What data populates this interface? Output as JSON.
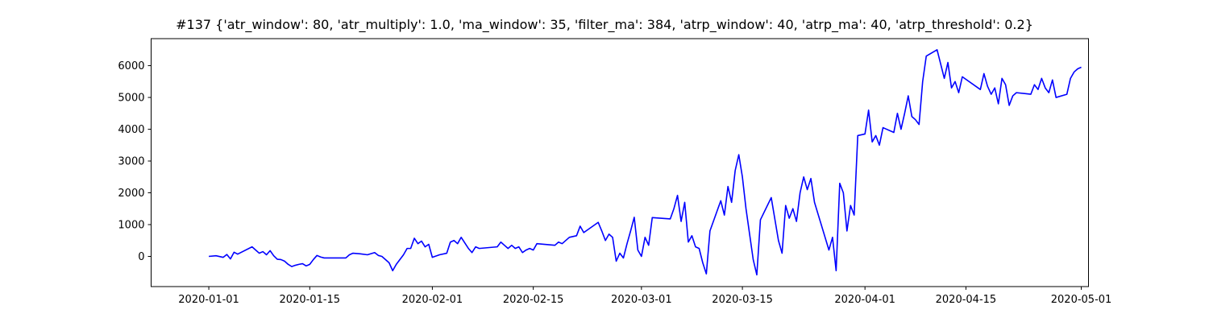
{
  "chart_data": {
    "type": "line",
    "title": "#137 {'atr_window': 80, 'atr_multiply': 1.0, 'ma_window': 35, 'filter_ma': 384, 'atrp_window': 40, 'atrp_ma': 40, 'atrp_threshold': 0.2}",
    "xlabel": "",
    "ylabel": "",
    "x_axis": {
      "type": "date",
      "range": [
        "2019-12-24",
        "2020-05-02"
      ],
      "ticks": [
        "2020-01-01",
        "2020-01-15",
        "2020-02-01",
        "2020-02-15",
        "2020-03-01",
        "2020-03-15",
        "2020-04-01",
        "2020-04-15",
        "2020-05-01"
      ]
    },
    "y_axis": {
      "range": [
        -950,
        6850
      ],
      "ticks": [
        0,
        1000,
        2000,
        3000,
        4000,
        5000,
        6000
      ]
    },
    "grid": false,
    "legend": "none",
    "series": [
      {
        "color": "#0000ff",
        "points": [
          [
            "2020-01-01",
            0
          ],
          [
            "2020-01-02",
            20
          ],
          [
            "2020-01-03",
            -30
          ],
          [
            "2020-01-03 12:00",
            60
          ],
          [
            "2020-01-04",
            -80
          ],
          [
            "2020-01-04 12:00",
            130
          ],
          [
            "2020-01-05",
            70
          ],
          [
            "2020-01-07",
            300
          ],
          [
            "2020-01-07 12:00",
            200
          ],
          [
            "2020-01-08",
            100
          ],
          [
            "2020-01-08 12:00",
            150
          ],
          [
            "2020-01-09",
            50
          ],
          [
            "2020-01-09 12:00",
            180
          ],
          [
            "2020-01-10",
            20
          ],
          [
            "2020-01-10 12:00",
            -90
          ],
          [
            "2020-01-11",
            -100
          ],
          [
            "2020-01-11 12:00",
            -150
          ],
          [
            "2020-01-12",
            -250
          ],
          [
            "2020-01-12 12:00",
            -320
          ],
          [
            "2020-01-13",
            -280
          ],
          [
            "2020-01-13 12:00",
            -250
          ],
          [
            "2020-01-14",
            -230
          ],
          [
            "2020-01-14 12:00",
            -300
          ],
          [
            "2020-01-15",
            -250
          ],
          [
            "2020-01-15 12:00",
            -100
          ],
          [
            "2020-01-16",
            30
          ],
          [
            "2020-01-16 12:00",
            -20
          ],
          [
            "2020-01-17",
            -50
          ],
          [
            "2020-01-20",
            -50
          ],
          [
            "2020-01-20 12:00",
            50
          ],
          [
            "2020-01-21",
            100
          ],
          [
            "2020-01-22",
            80
          ],
          [
            "2020-01-23",
            50
          ],
          [
            "2020-01-24",
            120
          ],
          [
            "2020-01-24 12:00",
            30
          ],
          [
            "2020-01-25",
            0
          ],
          [
            "2020-01-26",
            -200
          ],
          [
            "2020-01-26 12:00",
            -450
          ],
          [
            "2020-01-27",
            -250
          ],
          [
            "2020-01-28",
            50
          ],
          [
            "2020-01-28 12:00",
            250
          ],
          [
            "2020-01-29",
            250
          ],
          [
            "2020-01-29 12:00",
            570
          ],
          [
            "2020-01-30",
            400
          ],
          [
            "2020-01-30 12:00",
            480
          ],
          [
            "2020-01-31",
            300
          ],
          [
            "2020-01-31 12:00",
            380
          ],
          [
            "2020-02-01",
            -30
          ],
          [
            "2020-02-02",
            50
          ],
          [
            "2020-02-03",
            100
          ],
          [
            "2020-02-03 12:00",
            450
          ],
          [
            "2020-02-04",
            500
          ],
          [
            "2020-02-04 12:00",
            400
          ],
          [
            "2020-02-05",
            600
          ],
          [
            "2020-02-06",
            250
          ],
          [
            "2020-02-06 12:00",
            120
          ],
          [
            "2020-02-07",
            300
          ],
          [
            "2020-02-07 12:00",
            250
          ],
          [
            "2020-02-10",
            300
          ],
          [
            "2020-02-10 12:00",
            450
          ],
          [
            "2020-02-11",
            350
          ],
          [
            "2020-02-11 12:00",
            250
          ],
          [
            "2020-02-12",
            350
          ],
          [
            "2020-02-12 12:00",
            250
          ],
          [
            "2020-02-13",
            300
          ],
          [
            "2020-02-13 12:00",
            120
          ],
          [
            "2020-02-14",
            200
          ],
          [
            "2020-02-14 12:00",
            250
          ],
          [
            "2020-02-15",
            200
          ],
          [
            "2020-02-15 12:00",
            400
          ],
          [
            "2020-02-18",
            350
          ],
          [
            "2020-02-18 12:00",
            450
          ],
          [
            "2020-02-19",
            400
          ],
          [
            "2020-02-20",
            600
          ],
          [
            "2020-02-21",
            650
          ],
          [
            "2020-02-21 12:00",
            950
          ],
          [
            "2020-02-22",
            750
          ],
          [
            "2020-02-24",
            1070
          ],
          [
            "2020-02-24 12:00",
            800
          ],
          [
            "2020-02-25",
            500
          ],
          [
            "2020-02-25 12:00",
            700
          ],
          [
            "2020-02-26",
            600
          ],
          [
            "2020-02-26 12:00",
            -150
          ],
          [
            "2020-02-27",
            100
          ],
          [
            "2020-02-27 12:00",
            -50
          ],
          [
            "2020-02-28",
            400
          ],
          [
            "2020-02-28 12:00",
            800
          ],
          [
            "2020-02-29",
            1230
          ],
          [
            "2020-02-29 12:00",
            200
          ],
          [
            "2020-03-01",
            0
          ],
          [
            "2020-03-01 12:00",
            600
          ],
          [
            "2020-03-02",
            350
          ],
          [
            "2020-03-02 12:00",
            1220
          ],
          [
            "2020-03-05",
            1180
          ],
          [
            "2020-03-05 12:00",
            1500
          ],
          [
            "2020-03-06",
            1920
          ],
          [
            "2020-03-06 12:00",
            1100
          ],
          [
            "2020-03-07",
            1700
          ],
          [
            "2020-03-07 12:00",
            450
          ],
          [
            "2020-03-08",
            650
          ],
          [
            "2020-03-08 12:00",
            300
          ],
          [
            "2020-03-09",
            250
          ],
          [
            "2020-03-09 12:00",
            -200
          ],
          [
            "2020-03-10",
            -550
          ],
          [
            "2020-03-10 12:00",
            800
          ],
          [
            "2020-03-12",
            1750
          ],
          [
            "2020-03-12 12:00",
            1300
          ],
          [
            "2020-03-13",
            2200
          ],
          [
            "2020-03-13 12:00",
            1700
          ],
          [
            "2020-03-14",
            2700
          ],
          [
            "2020-03-14 12:00",
            3200
          ],
          [
            "2020-03-15",
            2500
          ],
          [
            "2020-03-15 12:00",
            1500
          ],
          [
            "2020-03-16",
            700
          ],
          [
            "2020-03-16 12:00",
            -100
          ],
          [
            "2020-03-17",
            -580
          ],
          [
            "2020-03-17 12:00",
            1150
          ],
          [
            "2020-03-19",
            1850
          ],
          [
            "2020-03-20",
            500
          ],
          [
            "2020-03-20 12:00",
            100
          ],
          [
            "2020-03-21",
            1600
          ],
          [
            "2020-03-21 12:00",
            1200
          ],
          [
            "2020-03-22",
            1500
          ],
          [
            "2020-03-22 12:00",
            1100
          ],
          [
            "2020-03-23",
            2000
          ],
          [
            "2020-03-23 12:00",
            2500
          ],
          [
            "2020-03-24",
            2100
          ],
          [
            "2020-03-24 12:00",
            2450
          ],
          [
            "2020-03-25",
            1700
          ],
          [
            "2020-03-27",
            200
          ],
          [
            "2020-03-27 12:00",
            600
          ],
          [
            "2020-03-28",
            -450
          ],
          [
            "2020-03-28 12:00",
            2300
          ],
          [
            "2020-03-29",
            2000
          ],
          [
            "2020-03-29 12:00",
            800
          ],
          [
            "2020-03-30",
            1600
          ],
          [
            "2020-03-30 12:00",
            1300
          ],
          [
            "2020-03-31",
            3800
          ],
          [
            "2020-04-01",
            3850
          ],
          [
            "2020-04-01 12:00",
            4600
          ],
          [
            "2020-04-02",
            3600
          ],
          [
            "2020-04-02 12:00",
            3800
          ],
          [
            "2020-04-03",
            3500
          ],
          [
            "2020-04-03 12:00",
            4050
          ],
          [
            "2020-04-05",
            3900
          ],
          [
            "2020-04-05 12:00",
            4500
          ],
          [
            "2020-04-06",
            4000
          ],
          [
            "2020-04-06 12:00",
            4500
          ],
          [
            "2020-04-07",
            5050
          ],
          [
            "2020-04-07 12:00",
            4400
          ],
          [
            "2020-04-08",
            4300
          ],
          [
            "2020-04-08 12:00",
            4150
          ],
          [
            "2020-04-09",
            5500
          ],
          [
            "2020-04-09 12:00",
            6300
          ],
          [
            "2020-04-11",
            6500
          ],
          [
            "2020-04-11 12:00",
            6050
          ],
          [
            "2020-04-12",
            5600
          ],
          [
            "2020-04-12 12:00",
            6100
          ],
          [
            "2020-04-13",
            5300
          ],
          [
            "2020-04-13 12:00",
            5500
          ],
          [
            "2020-04-14",
            5150
          ],
          [
            "2020-04-14 12:00",
            5650
          ],
          [
            "2020-04-17",
            5250
          ],
          [
            "2020-04-17 12:00",
            5750
          ],
          [
            "2020-04-18",
            5350
          ],
          [
            "2020-04-18 12:00",
            5100
          ],
          [
            "2020-04-19",
            5300
          ],
          [
            "2020-04-19 12:00",
            4800
          ],
          [
            "2020-04-20",
            5600
          ],
          [
            "2020-04-20 12:00",
            5400
          ],
          [
            "2020-04-21",
            4750
          ],
          [
            "2020-04-21 12:00",
            5050
          ],
          [
            "2020-04-22",
            5150
          ],
          [
            "2020-04-24",
            5100
          ],
          [
            "2020-04-24 12:00",
            5400
          ],
          [
            "2020-04-25",
            5250
          ],
          [
            "2020-04-25 12:00",
            5600
          ],
          [
            "2020-04-26",
            5300
          ],
          [
            "2020-04-26 12:00",
            5150
          ],
          [
            "2020-04-27",
            5550
          ],
          [
            "2020-04-27 12:00",
            5000
          ],
          [
            "2020-04-29",
            5100
          ],
          [
            "2020-04-29 12:00",
            5600
          ],
          [
            "2020-04-30",
            5800
          ],
          [
            "2020-04-30 12:00",
            5900
          ],
          [
            "2020-05-01",
            5950
          ]
        ]
      }
    ]
  }
}
